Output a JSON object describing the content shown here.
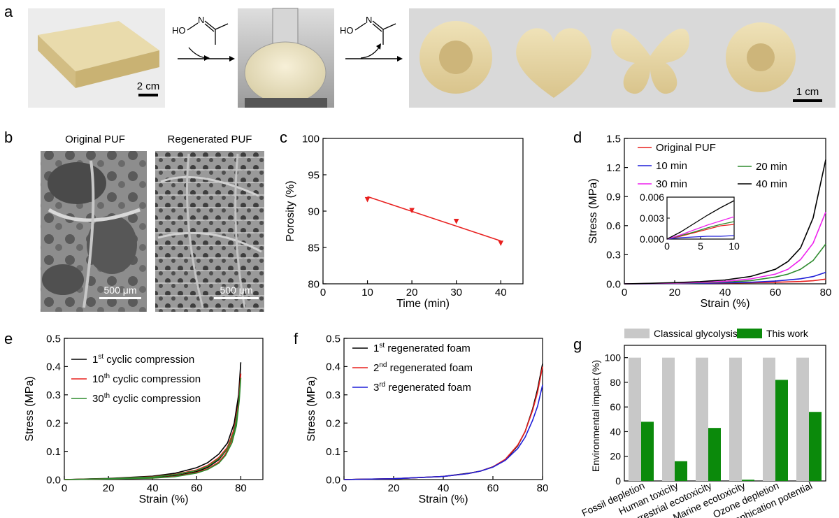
{
  "panels": {
    "a": {
      "letter": "a",
      "scale_bar_left": "2 cm",
      "scale_bar_right": "1 cm",
      "reagent_label": "HO",
      "reagent_atom": "N",
      "photos": [
        "foam-block-photo",
        "flask-photo",
        "flower-foam-photo",
        "heart-foam-photo",
        "butterfly-foam-photo",
        "sun-foam-photo"
      ]
    },
    "b": {
      "letter": "b",
      "left_title": "Original PUF",
      "right_title": "Regenerated PUF",
      "scale_left": "500 μm",
      "scale_right": "500 μm"
    }
  },
  "colors": {
    "red": "#e8201f",
    "blue": "#1f1fd8",
    "green": "#2e8b2e",
    "magenta": "#ee22ee",
    "black": "#000000",
    "gray": "#c8c8c8",
    "bar_green": "#0b8a0b"
  },
  "chart_data": [
    {
      "id": "c",
      "letter": "c",
      "type": "scatter",
      "xlabel": "Time (min)",
      "ylabel": "Porosity (%)",
      "xlim": [
        0,
        45
      ],
      "ylim": [
        80,
        100
      ],
      "xticks": [
        0,
        10,
        20,
        30,
        40
      ],
      "yticks": [
        80,
        85,
        90,
        95,
        100
      ],
      "points": [
        [
          10,
          91.6
        ],
        [
          20,
          90.1
        ],
        [
          30,
          88.6
        ],
        [
          40,
          85.6
        ]
      ],
      "fit_line": [
        [
          10,
          92.0
        ],
        [
          40,
          85.9
        ]
      ],
      "color": "#e8201f"
    },
    {
      "id": "d",
      "letter": "d",
      "type": "line",
      "xlabel": "Strain (%)",
      "ylabel": "Stress (MPa)",
      "xlim": [
        0,
        80
      ],
      "ylim": [
        0,
        1.5
      ],
      "xticks": [
        0,
        20,
        40,
        60,
        80
      ],
      "yticks": [
        0.0,
        0.3,
        0.6,
        0.9,
        1.2,
        1.5
      ],
      "ytick_labels": [
        "0.0",
        "0.3",
        "0.6",
        "0.9",
        "1.2",
        "1.5"
      ],
      "series": [
        {
          "name": "Original PUF",
          "color": "#e8201f",
          "points": [
            [
              0,
              0
            ],
            [
              10,
              0.002
            ],
            [
              20,
              0.004
            ],
            [
              30,
              0.006
            ],
            [
              40,
              0.008
            ],
            [
              50,
              0.011
            ],
            [
              60,
              0.016
            ],
            [
              70,
              0.024
            ],
            [
              75,
              0.032
            ],
            [
              80,
              0.048
            ]
          ]
        },
        {
          "name": "10 min",
          "color": "#1f1fd8",
          "points": [
            [
              0,
              0
            ],
            [
              10,
              0.001
            ],
            [
              20,
              0.003
            ],
            [
              30,
              0.006
            ],
            [
              40,
              0.01
            ],
            [
              50,
              0.016
            ],
            [
              60,
              0.028
            ],
            [
              70,
              0.052
            ],
            [
              75,
              0.075
            ],
            [
              80,
              0.118
            ]
          ]
        },
        {
          "name": "20 min",
          "color": "#2e8b2e",
          "points": [
            [
              0,
              0
            ],
            [
              10,
              0.002
            ],
            [
              20,
              0.005
            ],
            [
              30,
              0.01
            ],
            [
              40,
              0.018
            ],
            [
              50,
              0.032
            ],
            [
              60,
              0.07
            ],
            [
              65,
              0.1
            ],
            [
              70,
              0.15
            ],
            [
              75,
              0.24
            ],
            [
              80,
              0.41
            ]
          ]
        },
        {
          "name": "30 min",
          "color": "#ee22ee",
          "points": [
            [
              0,
              0
            ],
            [
              10,
              0.003
            ],
            [
              20,
              0.007
            ],
            [
              30,
              0.014
            ],
            [
              40,
              0.026
            ],
            [
              50,
              0.05
            ],
            [
              60,
              0.1
            ],
            [
              65,
              0.15
            ],
            [
              70,
              0.25
            ],
            [
              75,
              0.42
            ],
            [
              80,
              0.74
            ]
          ]
        },
        {
          "name": "40 min",
          "color": "#000000",
          "points": [
            [
              0,
              0
            ],
            [
              10,
              0.005
            ],
            [
              20,
              0.012
            ],
            [
              30,
              0.022
            ],
            [
              40,
              0.04
            ],
            [
              50,
              0.075
            ],
            [
              60,
              0.15
            ],
            [
              65,
              0.23
            ],
            [
              70,
              0.37
            ],
            [
              75,
              0.68
            ],
            [
              80,
              1.28
            ]
          ]
        }
      ],
      "legend_order": [
        "Original PUF",
        "10 min",
        "20 min",
        "30 min",
        "40 min"
      ],
      "inset": {
        "xlim": [
          0,
          10
        ],
        "ylim": [
          0,
          0.006
        ],
        "xticks": [
          0,
          5,
          10
        ],
        "yticks": [
          0.0,
          0.003,
          0.006
        ],
        "ytick_labels": [
          "0.000",
          "0.003",
          "0.006"
        ],
        "series": [
          {
            "name": "Original PUF",
            "color": "#e8201f",
            "points": [
              [
                0,
                0
              ],
              [
                2,
                0.0004
              ],
              [
                4,
                0.0009
              ],
              [
                6,
                0.0014
              ],
              [
                8,
                0.0019
              ],
              [
                10,
                0.0021
              ]
            ]
          },
          {
            "name": "10 min",
            "color": "#1f1fd8",
            "points": [
              [
                0,
                0
              ],
              [
                2,
                0.0002
              ],
              [
                4,
                0.0003
              ],
              [
                6,
                0.0004
              ],
              [
                8,
                0.0004
              ],
              [
                10,
                0.0005
              ]
            ]
          },
          {
            "name": "20 min",
            "color": "#2e8b2e",
            "points": [
              [
                0,
                0
              ],
              [
                2,
                0.0005
              ],
              [
                4,
                0.001
              ],
              [
                6,
                0.0016
              ],
              [
                8,
                0.0021
              ],
              [
                10,
                0.0025
              ]
            ]
          },
          {
            "name": "30 min",
            "color": "#ee22ee",
            "points": [
              [
                0,
                0
              ],
              [
                2,
                0.0006
              ],
              [
                4,
                0.0013
              ],
              [
                6,
                0.002
              ],
              [
                8,
                0.0026
              ],
              [
                10,
                0.0032
              ]
            ]
          },
          {
            "name": "40 min",
            "color": "#000000",
            "points": [
              [
                0,
                0
              ],
              [
                2,
                0.001
              ],
              [
                4,
                0.0022
              ],
              [
                6,
                0.0034
              ],
              [
                8,
                0.0045
              ],
              [
                10,
                0.0055
              ]
            ]
          }
        ]
      }
    },
    {
      "id": "e",
      "letter": "e",
      "type": "line",
      "xlabel": "Strain (%)",
      "ylabel": "Stress (MPa)",
      "xlim": [
        0,
        90
      ],
      "ylim": [
        0,
        0.5
      ],
      "xticks": [
        0,
        20,
        40,
        60,
        80
      ],
      "yticks": [
        0.0,
        0.1,
        0.2,
        0.3,
        0.4,
        0.5
      ],
      "ytick_labels": [
        "0.0",
        "0.1",
        "0.2",
        "0.3",
        "0.4",
        "0.5"
      ],
      "series": [
        {
          "name_prefix": "1",
          "name_sup": "st",
          "name_suffix": " cyclic compression",
          "color": "#000000",
          "points": [
            [
              0,
              0
            ],
            [
              20,
              0.004
            ],
            [
              40,
              0.012
            ],
            [
              50,
              0.022
            ],
            [
              60,
              0.042
            ],
            [
              65,
              0.06
            ],
            [
              70,
              0.09
            ],
            [
              74,
              0.13
            ],
            [
              77,
              0.2
            ],
            [
              79,
              0.3
            ],
            [
              80,
              0.415
            ],
            [
              79.3,
              0.32
            ],
            [
              78,
              0.22
            ],
            [
              76,
              0.15
            ],
            [
              73,
              0.1
            ],
            [
              70,
              0.07
            ],
            [
              65,
              0.043
            ],
            [
              60,
              0.028
            ],
            [
              50,
              0.013
            ],
            [
              40,
              0.006
            ],
            [
              20,
              0.002
            ],
            [
              0,
              0
            ]
          ]
        },
        {
          "name_prefix": "10",
          "name_sup": "th",
          "name_suffix": " cyclic compression",
          "color": "#e8201f",
          "points": [
            [
              0,
              0
            ],
            [
              20,
              0.003
            ],
            [
              40,
              0.01
            ],
            [
              50,
              0.018
            ],
            [
              60,
              0.034
            ],
            [
              65,
              0.05
            ],
            [
              70,
              0.078
            ],
            [
              74,
              0.115
            ],
            [
              77,
              0.18
            ],
            [
              79,
              0.27
            ],
            [
              80,
              0.375
            ],
            [
              79.3,
              0.29
            ],
            [
              78,
              0.2
            ],
            [
              76,
              0.14
            ],
            [
              73,
              0.09
            ],
            [
              70,
              0.062
            ],
            [
              65,
              0.038
            ],
            [
              60,
              0.025
            ],
            [
              50,
              0.011
            ],
            [
              40,
              0.005
            ],
            [
              20,
              0.002
            ],
            [
              0,
              0
            ]
          ]
        },
        {
          "name_prefix": "30",
          "name_sup": "th",
          "name_suffix": " cyclic compression",
          "color": "#2e8b2e",
          "points": [
            [
              0,
              0
            ],
            [
              20,
              0.003
            ],
            [
              40,
              0.009
            ],
            [
              50,
              0.017
            ],
            [
              60,
              0.032
            ],
            [
              65,
              0.047
            ],
            [
              70,
              0.074
            ],
            [
              74,
              0.11
            ],
            [
              77,
              0.17
            ],
            [
              79,
              0.26
            ],
            [
              80,
              0.36
            ],
            [
              79.3,
              0.28
            ],
            [
              78,
              0.19
            ],
            [
              76,
              0.13
            ],
            [
              73,
              0.085
            ],
            [
              70,
              0.058
            ],
            [
              65,
              0.036
            ],
            [
              60,
              0.023
            ],
            [
              50,
              0.01
            ],
            [
              40,
              0.005
            ],
            [
              20,
              0.002
            ],
            [
              0,
              0
            ]
          ]
        }
      ]
    },
    {
      "id": "f",
      "letter": "f",
      "type": "line",
      "xlabel": "Strain (%)",
      "ylabel": "Stress (MPa)",
      "xlim": [
        0,
        80
      ],
      "ylim": [
        0,
        0.5
      ],
      "xticks": [
        0,
        20,
        40,
        60,
        80
      ],
      "yticks": [
        0.0,
        0.1,
        0.2,
        0.3,
        0.4,
        0.5
      ],
      "ytick_labels": [
        "0.0",
        "0.1",
        "0.2",
        "0.3",
        "0.4",
        "0.5"
      ],
      "series": [
        {
          "name_prefix": "1",
          "name_sup": "st",
          "name_suffix": " regenerated foam",
          "color": "#000000",
          "points": [
            [
              0,
              0
            ],
            [
              20,
              0.003
            ],
            [
              40,
              0.011
            ],
            [
              50,
              0.022
            ],
            [
              55,
              0.03
            ],
            [
              60,
              0.045
            ],
            [
              65,
              0.07
            ],
            [
              70,
              0.12
            ],
            [
              73,
              0.17
            ],
            [
              76,
              0.25
            ],
            [
              78,
              0.32
            ],
            [
              80,
              0.41
            ]
          ]
        },
        {
          "name_prefix": "2",
          "name_sup": "nd",
          "name_suffix": " regenerated foam",
          "color": "#e8201f",
          "points": [
            [
              0,
              0
            ],
            [
              20,
              0.003
            ],
            [
              40,
              0.011
            ],
            [
              50,
              0.021
            ],
            [
              55,
              0.03
            ],
            [
              60,
              0.045
            ],
            [
              65,
              0.072
            ],
            [
              70,
              0.122
            ],
            [
              73,
              0.17
            ],
            [
              76,
              0.245
            ],
            [
              78,
              0.31
            ],
            [
              80,
              0.4
            ]
          ]
        },
        {
          "name_prefix": "3",
          "name_sup": "rd",
          "name_suffix": " regenerated foam",
          "color": "#1f1fd8",
          "points": [
            [
              0,
              0
            ],
            [
              20,
              0.003
            ],
            [
              40,
              0.011
            ],
            [
              50,
              0.021
            ],
            [
              55,
              0.03
            ],
            [
              60,
              0.044
            ],
            [
              65,
              0.068
            ],
            [
              70,
              0.11
            ],
            [
              73,
              0.15
            ],
            [
              76,
              0.21
            ],
            [
              78,
              0.26
            ],
            [
              80,
              0.335
            ]
          ]
        }
      ]
    },
    {
      "id": "g",
      "letter": "g",
      "type": "bar",
      "ylabel": "Environmental impact (%)",
      "ylim": [
        0,
        110
      ],
      "yticks": [
        0,
        20,
        40,
        60,
        80,
        100
      ],
      "categories": [
        "Fossil depletion",
        "Human toxicity",
        "Terrestrial ecotoxicity",
        "Marine ecotoxicity",
        "Ozone depletion",
        "Eutrophication potential"
      ],
      "series": [
        {
          "name": "Classical glycolysis",
          "color": "#c8c8c8",
          "values": [
            100,
            100,
            100,
            100,
            100,
            100
          ]
        },
        {
          "name": "This work",
          "color": "#0b8a0b",
          "values": [
            48,
            16,
            43,
            1,
            82,
            56
          ]
        }
      ]
    }
  ]
}
